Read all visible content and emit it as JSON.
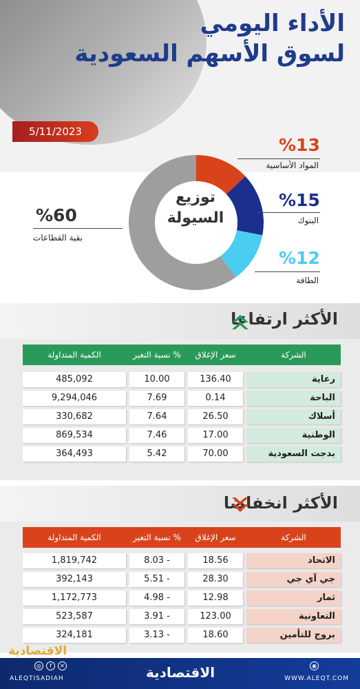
{
  "header": {
    "title_line1": "الأداء اليومي",
    "title_line2": "لسوق الأسهم السعودية",
    "date": "5/11/2023"
  },
  "liquidity": {
    "center_line1": "توزيع",
    "center_line2": "السيولة",
    "segments": [
      {
        "label": "المواد الأساسية",
        "pct_text": "%13",
        "value": 13,
        "color": "#d9431c"
      },
      {
        "label": "البنوك",
        "pct_text": "%15",
        "value": 15,
        "color": "#1c2f8c"
      },
      {
        "label": "الطاقة",
        "pct_text": "%12",
        "value": 12,
        "color": "#49cdf2"
      },
      {
        "label": "بقية القطاعات",
        "pct_text": "%60",
        "value": 60,
        "color": "#9e9e9e"
      }
    ]
  },
  "gainers": {
    "title": "الأكثر ارتفاعا",
    "header_color": "#2a9a5b",
    "name_bg": "#d3ebdd",
    "headers": {
      "company": "الشركة",
      "close": "سعر الإغلاق",
      "change": "نسبة التغير %",
      "volume": "الكمية المتداولة"
    },
    "rows": [
      {
        "company": "رعاية",
        "close": "136.40",
        "change": "10.00",
        "volume": "485,092"
      },
      {
        "company": "الباحة",
        "close": "0.14",
        "change": "7.69",
        "volume": "9,294,046"
      },
      {
        "company": "أسلاك",
        "close": "26.50",
        "change": "7.64",
        "volume": "330,682"
      },
      {
        "company": "الوطنية",
        "close": "17.00",
        "change": "7.46",
        "volume": "869,534"
      },
      {
        "company": "بدجت السعودية",
        "close": "70.00",
        "change": "5.42",
        "volume": "364,493"
      }
    ]
  },
  "losers": {
    "title": "الأكثر انخفاضا",
    "header_color": "#d9431c",
    "name_bg": "#f4d3c9",
    "headers": {
      "company": "الشركة",
      "close": "سعر الإغلاق",
      "change": "نسبة التغير %",
      "volume": "الكمية المتداولة"
    },
    "rows": [
      {
        "company": "الاتحاد",
        "close": "18.56",
        "change": "8.03 -",
        "volume": "1,819,742"
      },
      {
        "company": "جي آي جي",
        "close": "28.30",
        "change": "5.51 -",
        "volume": "392,143"
      },
      {
        "company": "ثمار",
        "close": "12.98",
        "change": "4.98 -",
        "volume": "1,172,773"
      },
      {
        "company": "التعاونية",
        "close": "123.00",
        "change": "3.91 -",
        "volume": "523,587"
      },
      {
        "company": "بروج للتأمين",
        "close": "18.60",
        "change": "3.13 -",
        "volume": "324,181"
      }
    ]
  },
  "footer": {
    "brand": "الاقتصادية",
    "handle": "ALEQTISADIAH",
    "url": "WWW.ALEQT.COM",
    "watermark": "الاقتصادية"
  },
  "chart_data": {
    "type": "pie",
    "title": "توزيع السيولة",
    "categories": [
      "المواد الأساسية",
      "البنوك",
      "الطاقة",
      "بقية القطاعات"
    ],
    "values": [
      13,
      15,
      12,
      60
    ]
  }
}
